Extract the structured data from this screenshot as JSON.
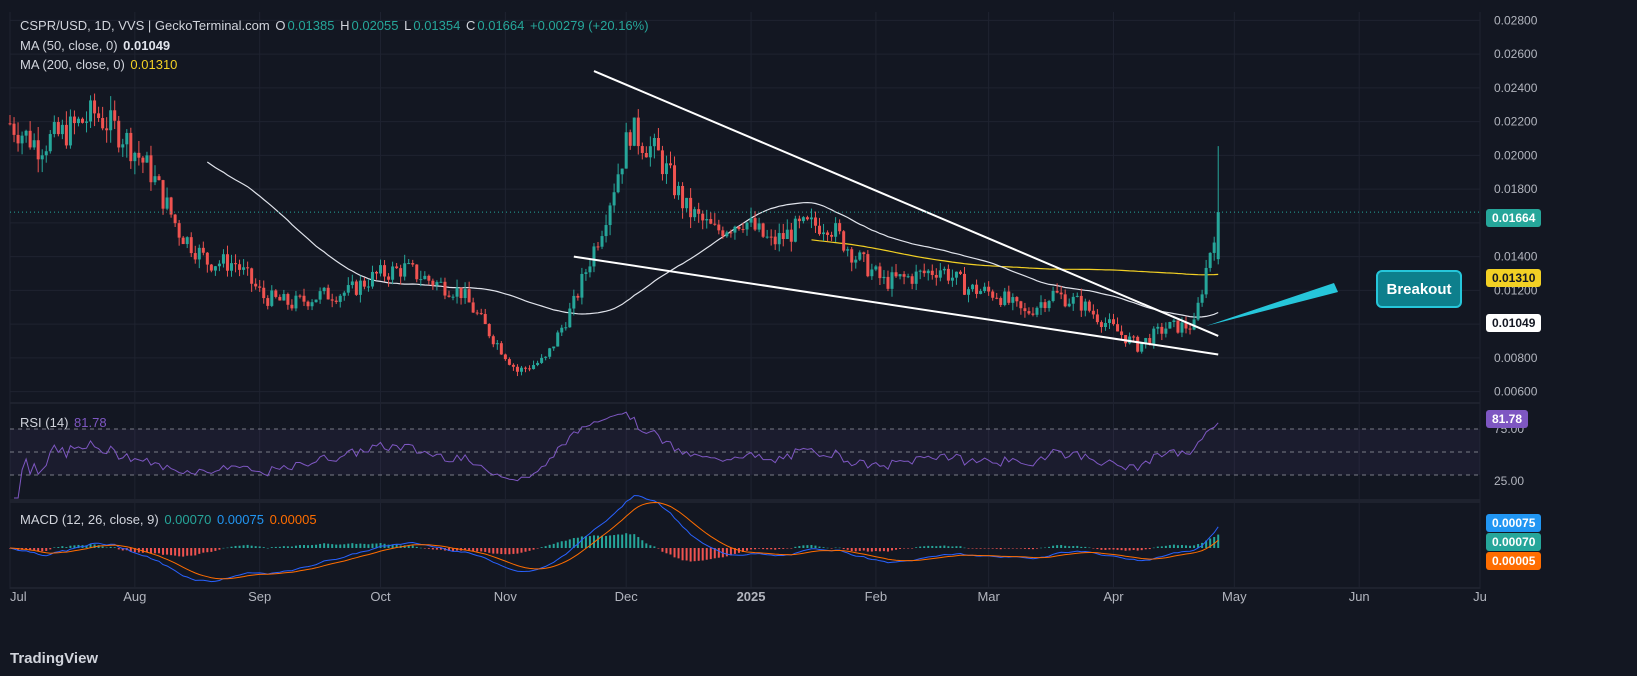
{
  "legend": {
    "symbol": "CSPR/USD, 1D, VVS | GeckoTerminal.com",
    "o_label": "O",
    "o": "0.01385",
    "h_label": "H",
    "h": "0.02055",
    "l_label": "L",
    "l": "0.01354",
    "c_label": "C",
    "c": "0.01664",
    "change": "+0.00279 (+20.16%)",
    "ma50_label": "MA (50, close, 0)",
    "ma50": "0.01049",
    "ma200_label": "MA (200, close, 0)",
    "ma200": "0.01310",
    "rsi_label": "RSI (14)",
    "rsi": "81.78",
    "macd_label": "MACD (12, 26, close, 9)",
    "macd_v1": "0.00070",
    "macd_v2": "0.00075",
    "macd_v3": "0.00005"
  },
  "price_pills": {
    "last": "0.01664",
    "ma200": "0.01310",
    "ma50": "0.01049"
  },
  "rsi_pills": {
    "rsi": "81.78",
    "upper": "75.00",
    "lower": "25.00"
  },
  "macd_pills": {
    "a": "0.00075",
    "b": "0.00070",
    "c": "0.00005"
  },
  "annotation": "Breakout",
  "branding": "TradingView",
  "colors": {
    "up": "#26a69a",
    "down": "#ef5350",
    "ma50": "#e0e3eb",
    "ma200": "#f2d024",
    "rsi": "#7e57c2",
    "macd": "#2962ff",
    "signal": "#ff6d00",
    "accent": "#26c6da"
  },
  "chart_data": {
    "type": "candlestick",
    "ylim": [
      0.0055,
      0.0285
    ],
    "y_ticks": [
      "0.02800",
      "0.02600",
      "0.02400",
      "0.02200",
      "0.02000",
      "0.01800",
      "0.01600",
      "0.01400",
      "0.01200",
      "0.01000",
      "0.00800",
      "0.00600"
    ],
    "x_ticks": [
      "Jul",
      "Aug",
      "Sep",
      "Oct",
      "Nov",
      "Dec",
      "2025",
      "Feb",
      "Mar",
      "Apr",
      "May",
      "Jun",
      "Ju"
    ],
    "closes": [
      {
        "d": "2024-07-01",
        "v": 0.0219
      },
      {
        "d": "2024-07-08",
        "v": 0.0206
      },
      {
        "d": "2024-07-15",
        "v": 0.0214
      },
      {
        "d": "2024-07-22",
        "v": 0.0225
      },
      {
        "d": "2024-07-29",
        "v": 0.0212
      },
      {
        "d": "2024-08-05",
        "v": 0.019
      },
      {
        "d": "2024-08-12",
        "v": 0.0155
      },
      {
        "d": "2024-08-19",
        "v": 0.0137
      },
      {
        "d": "2024-08-26",
        "v": 0.0136
      },
      {
        "d": "2024-09-02",
        "v": 0.0116
      },
      {
        "d": "2024-09-09",
        "v": 0.0112
      },
      {
        "d": "2024-09-16",
        "v": 0.0117
      },
      {
        "d": "2024-09-23",
        "v": 0.0119
      },
      {
        "d": "2024-09-30",
        "v": 0.0129
      },
      {
        "d": "2024-10-07",
        "v": 0.0133
      },
      {
        "d": "2024-10-14",
        "v": 0.0125
      },
      {
        "d": "2024-10-21",
        "v": 0.0119
      },
      {
        "d": "2024-10-28",
        "v": 0.0095
      },
      {
        "d": "2024-11-04",
        "v": 0.0072
      },
      {
        "d": "2024-11-11",
        "v": 0.0079
      },
      {
        "d": "2024-11-18",
        "v": 0.0112
      },
      {
        "d": "2024-11-25",
        "v": 0.0158
      },
      {
        "d": "2024-12-02",
        "v": 0.0215
      },
      {
        "d": "2024-12-09",
        "v": 0.02
      },
      {
        "d": "2024-12-16",
        "v": 0.0168
      },
      {
        "d": "2024-12-23",
        "v": 0.0155
      },
      {
        "d": "2024-12-30",
        "v": 0.0162
      },
      {
        "d": "2025-01-06",
        "v": 0.0148
      },
      {
        "d": "2025-01-13",
        "v": 0.0157
      },
      {
        "d": "2025-01-20",
        "v": 0.016
      },
      {
        "d": "2025-01-27",
        "v": 0.014
      },
      {
        "d": "2025-02-03",
        "v": 0.0125
      },
      {
        "d": "2025-02-10",
        "v": 0.0128
      },
      {
        "d": "2025-02-17",
        "v": 0.0133
      },
      {
        "d": "2025-02-24",
        "v": 0.0121
      },
      {
        "d": "2025-03-03",
        "v": 0.0118
      },
      {
        "d": "2025-03-10",
        "v": 0.0106
      },
      {
        "d": "2025-03-17",
        "v": 0.0118
      },
      {
        "d": "2025-03-24",
        "v": 0.0112
      },
      {
        "d": "2025-03-31",
        "v": 0.0099
      },
      {
        "d": "2025-04-07",
        "v": 0.0087
      },
      {
        "d": "2025-04-14",
        "v": 0.0098
      },
      {
        "d": "2025-04-21",
        "v": 0.0099
      },
      {
        "d": "2025-04-27",
        "v": 0.01664
      }
    ],
    "trendlines": [
      {
        "x1": "2024-11-23",
        "y1": 0.025,
        "x2": "2025-04-27",
        "y2": 0.0093
      },
      {
        "x1": "2024-11-18",
        "y1": 0.014,
        "x2": "2025-04-27",
        "y2": 0.0082
      }
    ]
  }
}
